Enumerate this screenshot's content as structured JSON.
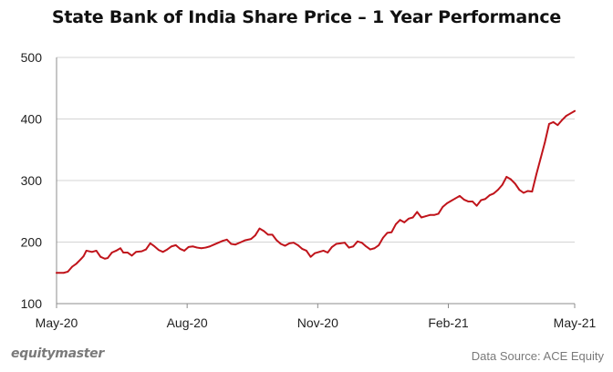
{
  "chart_data": {
    "type": "line",
    "title": "State Bank of India Share Price – 1 Year Performance",
    "xlabel": "",
    "ylabel": "",
    "ylim": [
      100,
      500
    ],
    "yticks": [
      100,
      200,
      300,
      400,
      500
    ],
    "xlim": [
      "2020-05-01",
      "2021-05-01"
    ],
    "xticks": [
      {
        "date": "2020-05-01",
        "label": "May-20"
      },
      {
        "date": "2020-08-01",
        "label": "Aug-20"
      },
      {
        "date": "2020-11-01",
        "label": "Nov-20"
      },
      {
        "date": "2021-02-01",
        "label": "Feb-21"
      },
      {
        "date": "2021-05-01",
        "label": "May-21"
      }
    ],
    "grid": "horizontal",
    "series": [
      {
        "color": "#c0141b",
        "points": [
          [
            "2020-05-01",
            150
          ],
          [
            "2020-05-06",
            150
          ],
          [
            "2020-05-09",
            152
          ],
          [
            "2020-05-12",
            160
          ],
          [
            "2020-05-15",
            165
          ],
          [
            "2020-05-18",
            172
          ],
          [
            "2020-05-20",
            177
          ],
          [
            "2020-05-22",
            186
          ],
          [
            "2020-05-26",
            184
          ],
          [
            "2020-05-29",
            186
          ],
          [
            "2020-06-01",
            176
          ],
          [
            "2020-06-04",
            173
          ],
          [
            "2020-06-06",
            174
          ],
          [
            "2020-06-09",
            183
          ],
          [
            "2020-06-12",
            186
          ],
          [
            "2020-06-15",
            190
          ],
          [
            "2020-06-17",
            183
          ],
          [
            "2020-06-20",
            183
          ],
          [
            "2020-06-23",
            178
          ],
          [
            "2020-06-26",
            184
          ],
          [
            "2020-06-30",
            185
          ],
          [
            "2020-07-03",
            188
          ],
          [
            "2020-07-06",
            198
          ],
          [
            "2020-07-09",
            193
          ],
          [
            "2020-07-12",
            187
          ],
          [
            "2020-07-15",
            184
          ],
          [
            "2020-07-18",
            188
          ],
          [
            "2020-07-21",
            193
          ],
          [
            "2020-07-24",
            195
          ],
          [
            "2020-07-27",
            189
          ],
          [
            "2020-07-30",
            186
          ],
          [
            "2020-08-02",
            192
          ],
          [
            "2020-08-05",
            193
          ],
          [
            "2020-08-08",
            191
          ],
          [
            "2020-08-11",
            190
          ],
          [
            "2020-08-14",
            191
          ],
          [
            "2020-08-17",
            193
          ],
          [
            "2020-08-20",
            196
          ],
          [
            "2020-08-23",
            199
          ],
          [
            "2020-08-26",
            202
          ],
          [
            "2020-08-29",
            204
          ],
          [
            "2020-09-01",
            197
          ],
          [
            "2020-09-04",
            196
          ],
          [
            "2020-09-08",
            200
          ],
          [
            "2020-09-11",
            203
          ],
          [
            "2020-09-15",
            205
          ],
          [
            "2020-09-18",
            211
          ],
          [
            "2020-09-21",
            222
          ],
          [
            "2020-09-24",
            218
          ],
          [
            "2020-09-27",
            212
          ],
          [
            "2020-09-30",
            212
          ],
          [
            "2020-10-03",
            203
          ],
          [
            "2020-10-06",
            197
          ],
          [
            "2020-10-09",
            194
          ],
          [
            "2020-10-12",
            198
          ],
          [
            "2020-10-15",
            199
          ],
          [
            "2020-10-18",
            195
          ],
          [
            "2020-10-21",
            189
          ],
          [
            "2020-10-24",
            186
          ],
          [
            "2020-10-27",
            176
          ],
          [
            "2020-10-30",
            182
          ],
          [
            "2020-11-02",
            184
          ],
          [
            "2020-11-05",
            186
          ],
          [
            "2020-11-08",
            183
          ],
          [
            "2020-11-11",
            192
          ],
          [
            "2020-11-14",
            197
          ],
          [
            "2020-11-17",
            198
          ],
          [
            "2020-11-20",
            199
          ],
          [
            "2020-11-23",
            191
          ],
          [
            "2020-11-26",
            193
          ],
          [
            "2020-11-29",
            201
          ],
          [
            "2020-12-02",
            199
          ],
          [
            "2020-12-05",
            193
          ],
          [
            "2020-12-08",
            188
          ],
          [
            "2020-12-11",
            190
          ],
          [
            "2020-12-14",
            195
          ],
          [
            "2020-12-17",
            207
          ],
          [
            "2020-12-20",
            215
          ],
          [
            "2020-12-23",
            216
          ],
          [
            "2020-12-26",
            229
          ],
          [
            "2020-12-29",
            236
          ],
          [
            "2021-01-01",
            232
          ],
          [
            "2021-01-04",
            238
          ],
          [
            "2021-01-07",
            240
          ],
          [
            "2021-01-10",
            249
          ],
          [
            "2021-01-13",
            240
          ],
          [
            "2021-01-16",
            242
          ],
          [
            "2021-01-19",
            244
          ],
          [
            "2021-01-22",
            244
          ],
          [
            "2021-01-25",
            246
          ],
          [
            "2021-01-28",
            257
          ],
          [
            "2021-01-31",
            263
          ],
          [
            "2021-02-03",
            267
          ],
          [
            "2021-02-06",
            271
          ],
          [
            "2021-02-09",
            275
          ],
          [
            "2021-02-12",
            269
          ],
          [
            "2021-02-15",
            266
          ],
          [
            "2021-02-18",
            266
          ],
          [
            "2021-02-21",
            259
          ],
          [
            "2021-02-24",
            268
          ],
          [
            "2021-02-27",
            270
          ],
          [
            "2021-03-02",
            276
          ],
          [
            "2021-03-05",
            279
          ],
          [
            "2021-03-08",
            285
          ],
          [
            "2021-03-11",
            293
          ],
          [
            "2021-03-14",
            306
          ],
          [
            "2021-03-17",
            302
          ],
          [
            "2021-03-20",
            295
          ],
          [
            "2021-03-23",
            285
          ],
          [
            "2021-03-26",
            280
          ],
          [
            "2021-03-29",
            283
          ],
          [
            "2021-04-01",
            282
          ],
          [
            "2021-04-04",
            310
          ],
          [
            "2021-04-07",
            336
          ],
          [
            "2021-04-10",
            362
          ],
          [
            "2021-04-13",
            392
          ],
          [
            "2021-04-16",
            395
          ],
          [
            "2021-04-19",
            390
          ],
          [
            "2021-04-22",
            398
          ],
          [
            "2021-04-25",
            405
          ],
          [
            "2021-04-28",
            409
          ],
          [
            "2021-05-01",
            413
          ]
        ]
      }
    ]
  },
  "footer": {
    "brand": "equitymaster",
    "source": "Data Source: ACE Equity"
  }
}
